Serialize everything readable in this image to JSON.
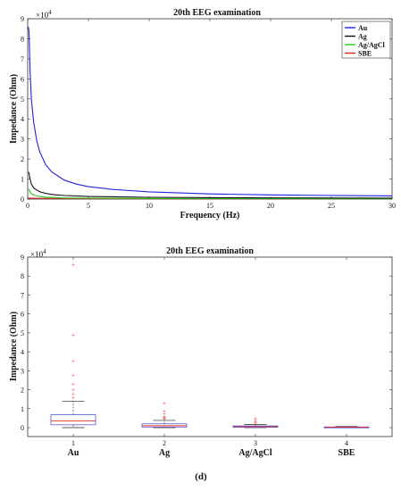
{
  "panel_label": "(d)",
  "colors": {
    "Au": "#2020e0",
    "Ag": "#111111",
    "Ag/AgCl": "#22cc22",
    "SBE": "#e02020",
    "box": "#5a5ad0",
    "median": "#e03030",
    "outlier": "#e03030",
    "whisker": "#222222"
  },
  "chart_data": [
    {
      "type": "line",
      "title": "20th EEG examination",
      "xlabel": "Frequency (Hz)",
      "ylabel": "Impedance (Ohm)",
      "y_exponent_label": "×10",
      "y_exponent_power": "4",
      "xlim": [
        0,
        30
      ],
      "ylim": [
        0,
        90000
      ],
      "xticks": [
        0,
        5,
        10,
        15,
        20,
        25,
        30
      ],
      "yticks": [
        0,
        10000,
        20000,
        30000,
        40000,
        50000,
        60000,
        70000,
        80000,
        90000
      ],
      "ytick_labels": [
        "0",
        "1",
        "2",
        "3",
        "4",
        "5",
        "6",
        "7",
        "8",
        "9"
      ],
      "grid": false,
      "legend_position": "top-right",
      "series": [
        {
          "name": "Au",
          "x": [
            0.05,
            0.1,
            0.2,
            0.3,
            0.5,
            0.75,
            1,
            1.5,
            2,
            3,
            4,
            5,
            7,
            10,
            15,
            20,
            25,
            30
          ],
          "y": [
            86000,
            84000,
            64000,
            50000,
            38000,
            29000,
            23500,
            17000,
            13500,
            9500,
            7500,
            6200,
            4800,
            3600,
            2600,
            2100,
            1800,
            1600
          ]
        },
        {
          "name": "Ag",
          "x": [
            0.05,
            0.1,
            0.2,
            0.3,
            0.5,
            1,
            1.5,
            2,
            3,
            5,
            10,
            15,
            20,
            30
          ],
          "y": [
            13500,
            13000,
            10000,
            7500,
            5500,
            3600,
            2800,
            2300,
            1800,
            1300,
            900,
            700,
            600,
            500
          ]
        },
        {
          "name": "Ag/AgCl",
          "x": [
            0.05,
            0.1,
            0.2,
            0.3,
            0.5,
            1,
            1.5,
            2,
            3,
            5,
            10,
            20,
            30
          ],
          "y": [
            5000,
            4800,
            3500,
            2700,
            2000,
            1300,
            1000,
            800,
            600,
            450,
            300,
            250,
            200
          ]
        },
        {
          "name": "SBE",
          "x": [
            0.05,
            0.5,
            1,
            5,
            10,
            20,
            30
          ],
          "y": [
            500,
            400,
            350,
            250,
            200,
            200,
            200
          ]
        }
      ]
    },
    {
      "type": "box",
      "title": "20th EEG examination",
      "xlabel": "",
      "ylabel": "Impedance (Ohm)",
      "y_exponent_label": "×10",
      "y_exponent_power": "4",
      "ylim": [
        0,
        90000
      ],
      "yticks": [
        0,
        10000,
        20000,
        30000,
        40000,
        50000,
        60000,
        70000,
        80000,
        90000
      ],
      "ytick_labels": [
        "0",
        "1",
        "2",
        "3",
        "4",
        "5",
        "6",
        "7",
        "8",
        "9"
      ],
      "categories": [
        "1",
        "2",
        "3",
        "4"
      ],
      "category_names": [
        "Au",
        "Ag",
        "Ag/AgCl",
        "SBE"
      ],
      "boxes": [
        {
          "q1": 1500,
          "median": 3500,
          "q3": 6800,
          "whisker_low": 0,
          "whisker_high": 14000,
          "outliers": [
            16000,
            18000,
            20000,
            23000,
            27500,
            35000,
            49000,
            86000
          ]
        },
        {
          "q1": 300,
          "median": 1000,
          "q3": 2000,
          "whisker_low": 0,
          "whisker_high": 3800,
          "outliers": [
            4500,
            5000,
            5500,
            6200,
            7500,
            9000,
            13000
          ]
        },
        {
          "q1": 150,
          "median": 500,
          "q3": 900,
          "whisker_low": 0,
          "whisker_high": 1600,
          "outliers": [
            2000,
            2500,
            3000,
            4000,
            5000
          ]
        },
        {
          "q1": 50,
          "median": 200,
          "q3": 350,
          "whisker_low": 0,
          "whisker_high": 600,
          "outliers": []
        }
      ]
    }
  ]
}
